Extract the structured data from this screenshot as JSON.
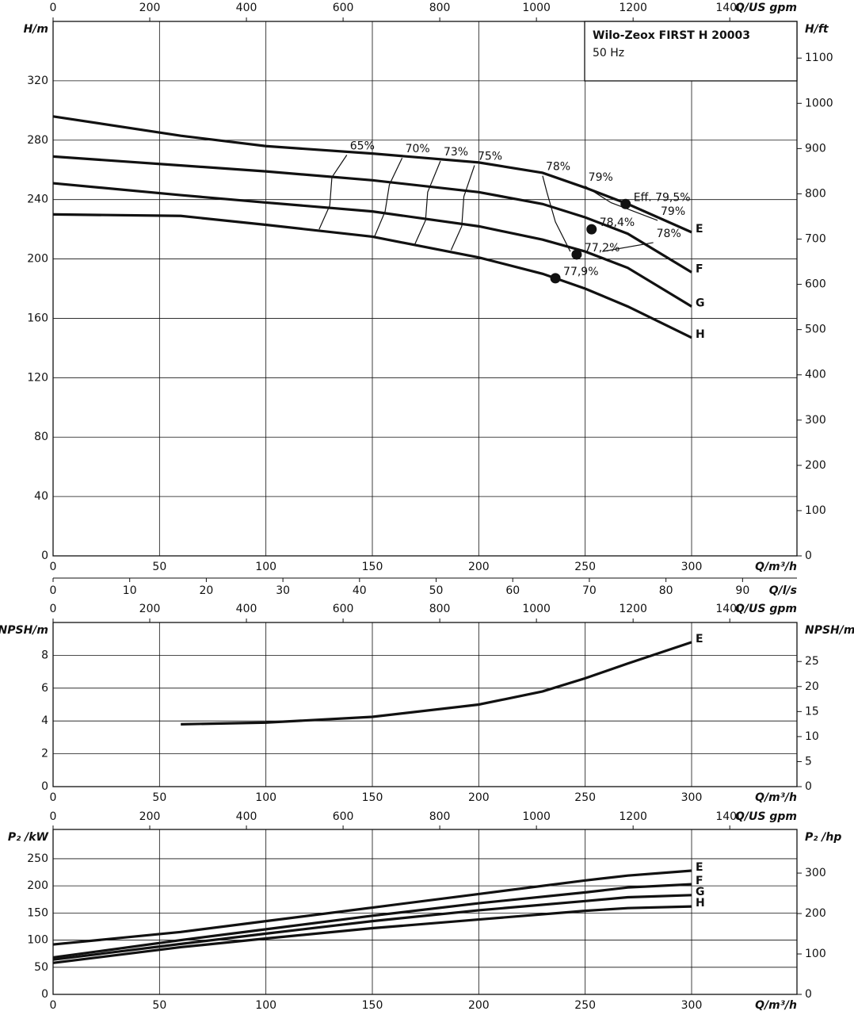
{
  "chart_data": [
    {
      "type": "line",
      "title": "Wilo-Zeox FIRST H 20003",
      "subtitle": "50 Hz",
      "xlabel": "Q/m³/h",
      "xlim": [
        0,
        349.5
      ],
      "xticks": [
        0,
        50,
        100,
        150,
        200,
        250,
        300
      ],
      "ylabel": "H/m",
      "ylim": [
        0,
        360
      ],
      "yticks": [
        0,
        40,
        80,
        120,
        160,
        200,
        240,
        280,
        320
      ],
      "y2label": "H/ft",
      "y2lim": [
        0,
        1181
      ],
      "y2ticks": [
        0,
        100,
        200,
        300,
        400,
        500,
        600,
        700,
        800,
        900,
        1000,
        1100
      ],
      "top_axis": {
        "label": "Q/US gpm",
        "lim": [
          0,
          1539
        ],
        "ticks": [
          0,
          200,
          400,
          600,
          800,
          1000,
          1200,
          1400
        ]
      },
      "bottom_axis": {
        "label": "Q/l/s",
        "lim": [
          0,
          97.1
        ],
        "ticks": [
          0,
          10,
          20,
          30,
          40,
          50,
          60,
          70,
          80,
          90
        ]
      },
      "grid": true,
      "x": [
        0,
        60,
        100,
        150,
        200,
        230,
        250,
        270,
        300
      ],
      "series": [
        {
          "name": "E",
          "color": "#111111",
          "values": [
            296,
            283,
            276,
            271,
            265,
            258,
            248,
            237,
            218
          ]
        },
        {
          "name": "F",
          "color": "#111111",
          "values": [
            269,
            263,
            259,
            253,
            245,
            237,
            228,
            217,
            191
          ]
        },
        {
          "name": "G",
          "color": "#111111",
          "values": [
            251,
            243,
            238,
            232,
            222,
            213,
            205,
            194,
            168
          ]
        },
        {
          "name": "H",
          "color": "#111111",
          "values": [
            230,
            229,
            223,
            215,
            201,
            190,
            180,
            168,
            147
          ]
        }
      ],
      "iso_lines": [
        {
          "label": "65%",
          "x": [
            125,
            130,
            131,
            138
          ],
          "y": [
            220,
            236,
            255,
            270
          ]
        },
        {
          "label": "70%",
          "x": [
            151,
            156,
            158,
            164
          ],
          "y": [
            215,
            232,
            250,
            268
          ]
        },
        {
          "label": "73%",
          "x": [
            170,
            175,
            176,
            182
          ],
          "y": [
            210,
            226,
            245,
            266
          ]
        },
        {
          "label": "75%",
          "x": [
            187,
            192,
            193,
            198
          ],
          "y": [
            206,
            222,
            242,
            263
          ]
        },
        {
          "label": "78%",
          "x": [
            243,
            236,
            232,
            230
          ],
          "y": [
            205,
            225,
            245,
            256
          ]
        },
        {
          "label": "79%",
          "x": [
            262,
            250
          ],
          "y": [
            238,
            249
          ]
        },
        {
          "label": "79%",
          "x": [
            262,
            284
          ],
          "y": [
            238,
            226
          ]
        },
        {
          "label": "78%",
          "x": [
            258,
            282
          ],
          "y": [
            205,
            211
          ]
        }
      ],
      "points": [
        {
          "label": "Eff. 79,5%",
          "x": 269,
          "y": 237
        },
        {
          "label": "78,4%",
          "x": 253,
          "y": 220
        },
        {
          "label": "77,2%",
          "x": 246,
          "y": 203
        },
        {
          "label": "77,9%",
          "x": 236,
          "y": 187
        }
      ]
    },
    {
      "type": "line",
      "xlabel": "Q/m³/h",
      "xlim": [
        0,
        349.5
      ],
      "xticks": [
        0,
        50,
        100,
        150,
        200,
        250,
        300
      ],
      "ylabel": "NPSH/m",
      "ylim": [
        0,
        10
      ],
      "yticks": [
        0,
        2,
        4,
        6,
        8
      ],
      "y2label": "NPSH/m",
      "y2lim": [
        0,
        32.8
      ],
      "y2ticks": [
        0,
        5,
        10,
        15,
        20,
        25
      ],
      "top_axis": {
        "label": "Q/US gpm",
        "lim": [
          0,
          1539
        ],
        "ticks": [
          0,
          200,
          400,
          600,
          800,
          1000,
          1200,
          1400
        ]
      },
      "grid": true,
      "x": [
        60,
        100,
        150,
        200,
        230,
        250,
        270,
        300
      ],
      "series": [
        {
          "name": "E",
          "color": "#111111",
          "values": [
            3.8,
            3.9,
            4.25,
            5.0,
            5.8,
            6.6,
            7.5,
            8.8
          ]
        }
      ]
    },
    {
      "type": "line",
      "xlabel": "Q/m³/h",
      "xlim": [
        0,
        349.5
      ],
      "xticks": [
        0,
        50,
        100,
        150,
        200,
        250,
        300
      ],
      "ylabel": "P₂ /kW",
      "ylim": [
        0,
        304
      ],
      "yticks": [
        0,
        50,
        100,
        150,
        200,
        250
      ],
      "y2label": "P₂ /hp",
      "y2lim": [
        0,
        408
      ],
      "y2ticks": [
        0,
        100,
        200,
        300
      ],
      "top_axis": {
        "label": "Q/US gpm",
        "lim": [
          0,
          1539
        ],
        "ticks": [
          0,
          200,
          400,
          600,
          800,
          1000,
          1200,
          1400
        ]
      },
      "grid": true,
      "x": [
        0,
        60,
        100,
        150,
        200,
        250,
        270,
        300
      ],
      "series": [
        {
          "name": "E",
          "color": "#111111",
          "values": [
            92,
            115,
            135,
            160,
            185,
            210,
            219,
            228
          ]
        },
        {
          "name": "F",
          "color": "#111111",
          "values": [
            68,
            100,
            120,
            145,
            168,
            188,
            197,
            203
          ]
        },
        {
          "name": "G",
          "color": "#111111",
          "values": [
            64,
            93,
            112,
            135,
            155,
            172,
            179,
            183
          ]
        },
        {
          "name": "H",
          "color": "#111111",
          "values": [
            58,
            87,
            103,
            122,
            138,
            154,
            159,
            162
          ]
        }
      ]
    }
  ]
}
